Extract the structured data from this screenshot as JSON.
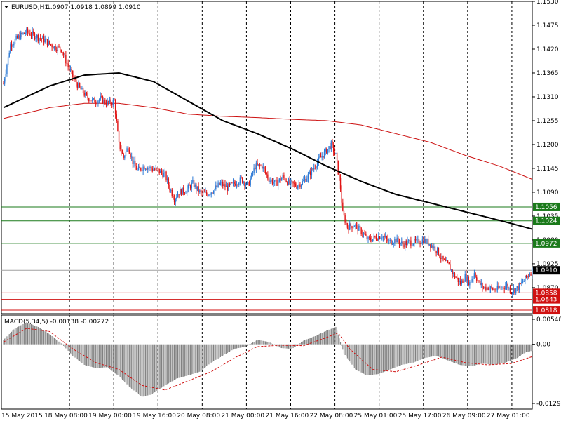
{
  "window": {
    "symbol_timeframe": "EURUSD,H1",
    "ohlc_text": "1.0907 1.0918 1.0899 1.0910",
    "menu_icon": "triangle-down-icon"
  },
  "indicator": {
    "label": "MACD(5,34,5) -0.00138 -0.00272"
  },
  "colors": {
    "bull": "#2e7bd6",
    "bear": "#e01414",
    "ma_slow": "#000000",
    "ma_fast": "#cc1010",
    "support": "#1a7a1a",
    "resistance": "#d01010",
    "current": "#a0a0a0",
    "macd_hist": "#808080",
    "macd_signal": "#d01010"
  },
  "chart_data": {
    "type": "candlestick",
    "price_ylim": [
      1.081,
      1.153
    ],
    "price_ticks": [
      "1.1530",
      "1.1475",
      "1.1420",
      "1.1365",
      "1.1310",
      "1.1255",
      "1.1200",
      "1.1145",
      "1.1090",
      "1.1035",
      "1.0980",
      "1.0925",
      "1.0870"
    ],
    "price_ticks_values": [
      1.153,
      1.1475,
      1.142,
      1.1365,
      1.131,
      1.1255,
      1.12,
      1.1145,
      1.109,
      1.1035,
      1.098,
      1.0925,
      1.087
    ],
    "x_labels": [
      "15 May 2015",
      "18 May 08:00",
      "19 May 00:00",
      "19 May 16:00",
      "20 May 08:00",
      "21 May 00:00",
      "21 May 16:00",
      "22 May 08:00",
      "25 May 01:00",
      "25 May 17:00",
      "26 May 09:00",
      "27 May 01:00"
    ],
    "hlines": [
      {
        "label": "1.1056",
        "value": 1.1056,
        "kind": "support"
      },
      {
        "label": "1.1024",
        "value": 1.1024,
        "kind": "support"
      },
      {
        "label": "1.0972",
        "value": 1.0972,
        "kind": "support"
      },
      {
        "label": "1.0910",
        "value": 1.091,
        "kind": "current"
      },
      {
        "label": "1.0858",
        "value": 1.0858,
        "kind": "resistance"
      },
      {
        "label": "1.0843",
        "value": 1.0843,
        "kind": "resistance"
      },
      {
        "label": "1.0818",
        "value": 1.0818,
        "kind": "resistance"
      }
    ],
    "close_path": [
      [
        0,
        1.134
      ],
      [
        6,
        1.143
      ],
      [
        14,
        1.145
      ],
      [
        20,
        1.146
      ],
      [
        28,
        1.145
      ],
      [
        36,
        1.144
      ],
      [
        44,
        1.1425
      ],
      [
        50,
        1.142
      ],
      [
        56,
        1.138
      ],
      [
        62,
        1.1345
      ],
      [
        66,
        1.133
      ],
      [
        72,
        1.131
      ],
      [
        78,
        1.13
      ],
      [
        84,
        1.1305
      ],
      [
        90,
        1.1295
      ],
      [
        96,
        1.13
      ],
      [
        100,
        1.12
      ],
      [
        104,
        1.117
      ],
      [
        108,
        1.1195
      ],
      [
        112,
        1.116
      ],
      [
        116,
        1.114
      ],
      [
        122,
        1.115
      ],
      [
        128,
        1.1145
      ],
      [
        134,
        1.114
      ],
      [
        140,
        1.113
      ],
      [
        144,
        1.11
      ],
      [
        148,
        1.1075
      ],
      [
        152,
        1.109
      ],
      [
        158,
        1.1095
      ],
      [
        164,
        1.111
      ],
      [
        170,
        1.109
      ],
      [
        176,
        1.1085
      ],
      [
        182,
        1.1095
      ],
      [
        188,
        1.111
      ],
      [
        194,
        1.11
      ],
      [
        200,
        1.111
      ],
      [
        206,
        1.112
      ],
      [
        212,
        1.1105
      ],
      [
        218,
        1.115
      ],
      [
        224,
        1.115
      ],
      [
        230,
        1.112
      ],
      [
        236,
        1.111
      ],
      [
        242,
        1.1125
      ],
      [
        248,
        1.111
      ],
      [
        254,
        1.1105
      ],
      [
        260,
        1.1115
      ],
      [
        266,
        1.1135
      ],
      [
        272,
        1.116
      ],
      [
        278,
        1.118
      ],
      [
        284,
        1.12
      ],
      [
        288,
        1.1175
      ],
      [
        292,
        1.11
      ],
      [
        294,
        1.104
      ],
      [
        298,
        1.101
      ],
      [
        304,
        1.1015
      ],
      [
        310,
        1.1
      ],
      [
        316,
        1.098
      ],
      [
        322,
        1.0985
      ],
      [
        328,
        1.099
      ],
      [
        334,
        1.0975
      ],
      [
        340,
        1.098
      ],
      [
        346,
        1.097
      ],
      [
        352,
        1.0975
      ],
      [
        358,
        1.0975
      ],
      [
        364,
        1.098
      ],
      [
        370,
        1.097
      ],
      [
        376,
        1.0955
      ],
      [
        380,
        1.0935
      ],
      [
        386,
        1.092
      ],
      [
        390,
        1.09
      ],
      [
        396,
        1.088
      ],
      [
        400,
        1.0895
      ],
      [
        404,
        1.088
      ],
      [
        408,
        1.0905
      ],
      [
        412,
        1.088
      ],
      [
        416,
        1.087
      ],
      [
        420,
        1.087
      ],
      [
        426,
        1.0865
      ],
      [
        432,
        1.087
      ],
      [
        436,
        1.0875
      ],
      [
        440,
        1.0862
      ],
      [
        446,
        1.087
      ],
      [
        452,
        1.089
      ],
      [
        458,
        1.091
      ]
    ],
    "ma_slow": [
      [
        0,
        1.1285
      ],
      [
        40,
        1.1335
      ],
      [
        70,
        1.136
      ],
      [
        100,
        1.1365
      ],
      [
        130,
        1.1345
      ],
      [
        160,
        1.13
      ],
      [
        190,
        1.1255
      ],
      [
        220,
        1.1225
      ],
      [
        250,
        1.119
      ],
      [
        280,
        1.115
      ],
      [
        310,
        1.1115
      ],
      [
        340,
        1.1085
      ],
      [
        370,
        1.1065
      ],
      [
        400,
        1.1045
      ],
      [
        430,
        1.1025
      ],
      [
        458,
        1.1005
      ]
    ],
    "ma_fast": [
      [
        0,
        1.126
      ],
      [
        40,
        1.1285
      ],
      [
        70,
        1.1295
      ],
      [
        100,
        1.1295
      ],
      [
        130,
        1.1285
      ],
      [
        160,
        1.127
      ],
      [
        190,
        1.1265
      ],
      [
        220,
        1.1262
      ],
      [
        250,
        1.1258
      ],
      [
        280,
        1.1255
      ],
      [
        310,
        1.1245
      ],
      [
        340,
        1.1225
      ],
      [
        370,
        1.1205
      ],
      [
        400,
        1.1175
      ],
      [
        430,
        1.115
      ],
      [
        458,
        1.112
      ]
    ],
    "macd_ylim": [
      -0.01294,
      0.00548
    ],
    "macd_ticks": [
      "0.00548",
      "0.00",
      "-0.01294"
    ],
    "macd_ticks_values": [
      0.00548,
      0.0,
      -0.01294
    ],
    "macd_path": [
      [
        0,
        0.001
      ],
      [
        10,
        0.0035
      ],
      [
        20,
        0.0048
      ],
      [
        30,
        0.0038
      ],
      [
        40,
        0.0022
      ],
      [
        50,
        0.0002
      ],
      [
        60,
        -0.0025
      ],
      [
        70,
        -0.0045
      ],
      [
        80,
        -0.0052
      ],
      [
        90,
        -0.005
      ],
      [
        100,
        -0.007
      ],
      [
        110,
        -0.0095
      ],
      [
        120,
        -0.0115
      ],
      [
        128,
        -0.011
      ],
      [
        140,
        -0.009
      ],
      [
        150,
        -0.0075
      ],
      [
        160,
        -0.0068
      ],
      [
        170,
        -0.006
      ],
      [
        180,
        -0.004
      ],
      [
        190,
        -0.0025
      ],
      [
        200,
        -0.001
      ],
      [
        210,
        -0.0005
      ],
      [
        220,
        0.001
      ],
      [
        230,
        0.0005
      ],
      [
        240,
        -0.0008
      ],
      [
        250,
        -0.001
      ],
      [
        260,
        0.0008
      ],
      [
        270,
        0.0018
      ],
      [
        280,
        0.003
      ],
      [
        288,
        0.0038
      ],
      [
        295,
        -0.002
      ],
      [
        305,
        -0.0055
      ],
      [
        315,
        -0.0068
      ],
      [
        325,
        -0.0065
      ],
      [
        335,
        -0.0055
      ],
      [
        345,
        -0.0045
      ],
      [
        355,
        -0.004
      ],
      [
        365,
        -0.003
      ],
      [
        375,
        -0.0025
      ],
      [
        385,
        -0.0035
      ],
      [
        395,
        -0.0045
      ],
      [
        405,
        -0.0048
      ],
      [
        415,
        -0.0042
      ],
      [
        425,
        -0.0045
      ],
      [
        435,
        -0.004
      ],
      [
        445,
        -0.003
      ],
      [
        452,
        -0.0018
      ],
      [
        458,
        -0.0014
      ]
    ],
    "macd_signal_path": [
      [
        0,
        0.0005
      ],
      [
        20,
        0.0035
      ],
      [
        40,
        0.0028
      ],
      [
        60,
        -0.001
      ],
      [
        80,
        -0.004
      ],
      [
        100,
        -0.0055
      ],
      [
        120,
        -0.009
      ],
      [
        140,
        -0.01
      ],
      [
        160,
        -0.008
      ],
      [
        180,
        -0.006
      ],
      [
        200,
        -0.003
      ],
      [
        220,
        -0.0005
      ],
      [
        240,
        -0.0002
      ],
      [
        260,
        -0.0003
      ],
      [
        280,
        0.0015
      ],
      [
        290,
        0.0025
      ],
      [
        300,
        -0.001
      ],
      [
        320,
        -0.0055
      ],
      [
        340,
        -0.006
      ],
      [
        360,
        -0.0045
      ],
      [
        380,
        -0.0028
      ],
      [
        400,
        -0.004
      ],
      [
        420,
        -0.0045
      ],
      [
        440,
        -0.0042
      ],
      [
        458,
        -0.0027
      ]
    ]
  }
}
